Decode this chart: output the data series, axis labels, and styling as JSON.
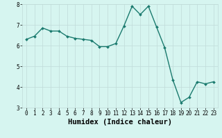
{
  "x": [
    0,
    1,
    2,
    3,
    4,
    5,
    6,
    7,
    8,
    9,
    10,
    11,
    12,
    13,
    14,
    15,
    16,
    17,
    18,
    19,
    20,
    21,
    22,
    23
  ],
  "y": [
    6.3,
    6.45,
    6.85,
    6.7,
    6.7,
    6.45,
    6.35,
    6.3,
    6.25,
    5.95,
    5.95,
    6.1,
    6.95,
    7.9,
    7.5,
    7.9,
    6.9,
    5.9,
    4.35,
    3.25,
    3.5,
    4.25,
    4.15,
    4.25
  ],
  "line_color": "#1a7a6e",
  "marker": "D",
  "marker_size": 2.0,
  "bg_color": "#d6f5f0",
  "grid_color": "#c0dbd8",
  "xlabel": "Humidex (Indice chaleur)",
  "ylim": [
    3,
    8
  ],
  "xlim_min": -0.5,
  "xlim_max": 23.5,
  "yticks": [
    3,
    4,
    5,
    6,
    7,
    8
  ],
  "xticks": [
    0,
    1,
    2,
    3,
    4,
    5,
    6,
    7,
    8,
    9,
    10,
    11,
    12,
    13,
    14,
    15,
    16,
    17,
    18,
    19,
    20,
    21,
    22,
    23
  ],
  "tick_fontsize": 5.5,
  "xlabel_fontsize": 7.5,
  "xlabel_bold": true,
  "linewidth": 1.0
}
